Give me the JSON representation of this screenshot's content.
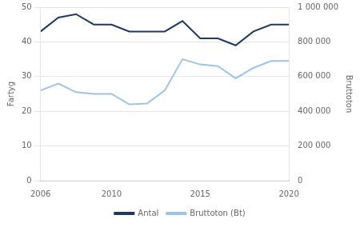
{
  "chart_data": {
    "type": "line",
    "ylabel": "Fartyg",
    "y2label": "Bruttoton",
    "x": [
      2006,
      2007,
      2008,
      2009,
      2010,
      2011,
      2012,
      2013,
      2014,
      2015,
      2016,
      2017,
      2018,
      2019,
      2020
    ],
    "series": [
      {
        "name": "Antal",
        "color": "#1f3864",
        "values": [
          43,
          47,
          48,
          45,
          45,
          43,
          43,
          43,
          46,
          41,
          41,
          39,
          43,
          45,
          45
        ]
      },
      {
        "name": "Bruttoton (Bt)",
        "color": "#9dc3e6",
        "axis": "y2",
        "values": [
          520000,
          560000,
          510000,
          500000,
          500000,
          440000,
          445000,
          520000,
          700000,
          670000,
          660000,
          590000,
          650000,
          690000,
          690000
        ]
      }
    ],
    "xlim": [
      2006,
      2020
    ],
    "xticks": [
      2006,
      2010,
      2015,
      2020
    ],
    "ylim": [
      0,
      50
    ],
    "yticks": [
      0,
      10,
      20,
      30,
      40,
      50
    ],
    "y2lim": [
      0,
      1000000
    ],
    "y2ticks": [
      0,
      {
        "value": 200000,
        "label": "200 000"
      },
      {
        "value": 400000,
        "label": "400 000"
      },
      {
        "value": 600000,
        "label": "600 000"
      },
      {
        "value": 800000,
        "label": "800 000"
      },
      {
        "value": 1000000,
        "label": "1 000 000"
      }
    ],
    "grid": "y",
    "legend": "bottom"
  }
}
